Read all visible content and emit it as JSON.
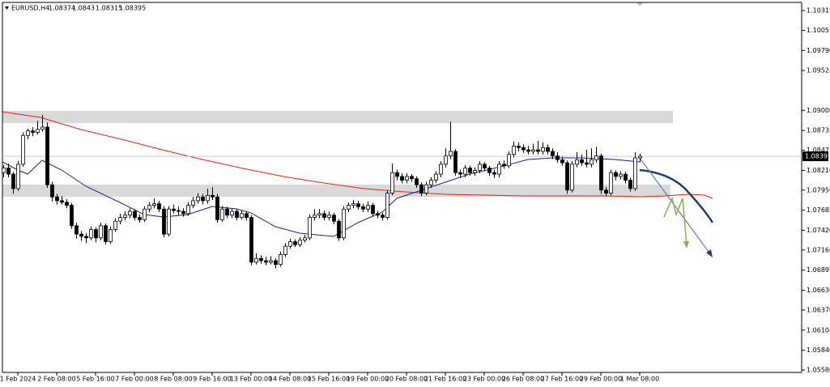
{
  "chart_data": {
    "type": "candlestick",
    "title": "EURUSD,H4",
    "ylim": [
      1.05548,
      1.10454
    ],
    "yticks": [
      1.10315,
      1.10055,
      {
        "value": 1.0979,
        "label": "1.09790"
      },
      1.09525,
      {
        "value": 1.09,
        "label": "1.09000"
      },
      1.08735,
      1.08475,
      {
        "value": 1.0821,
        "label": "1.08210"
      },
      {
        "value": 1.0795,
        "label": "1.07950"
      },
      1.07685,
      {
        "value": 1.0742,
        "label": "1.07420"
      },
      {
        "value": 1.0716,
        "label": "1.07160"
      },
      1.06895,
      {
        "value": 1.0663,
        "label": "1.06630"
      },
      {
        "value": 1.0637,
        "label": "1.06370"
      },
      1.06105,
      {
        "value": 1.0584,
        "label": "1.05840"
      },
      {
        "value": 1.0558,
        "label": "1.05580"
      }
    ],
    "categories": [
      null,
      null,
      null,
      "1 Feb 2024",
      null,
      null,
      null,
      null,
      null,
      null,
      null,
      "2 Feb 08:00",
      null,
      null,
      null,
      null,
      null,
      null,
      null,
      "5 Feb 16:00",
      null,
      null,
      null,
      null,
      null,
      null,
      null,
      "7 Feb 00:00",
      null,
      null,
      null,
      null,
      null,
      null,
      null,
      "8 Feb 08:00",
      null,
      null,
      null,
      null,
      null,
      null,
      null,
      "9 Feb 16:00",
      null,
      null,
      null,
      null,
      null,
      null,
      null,
      "13 Feb 00:00",
      null,
      null,
      null,
      null,
      null,
      null,
      null,
      "14 Feb 08:00",
      null,
      null,
      null,
      null,
      null,
      null,
      null,
      "15 Feb 16:00",
      null,
      null,
      null,
      null,
      null,
      null,
      null,
      "19 Feb 00:00",
      null,
      null,
      null,
      null,
      null,
      null,
      null,
      "20 Feb 08:00",
      null,
      null,
      null,
      null,
      null,
      null,
      null,
      "21 Feb 16:00",
      null,
      null,
      null,
      null,
      null,
      null,
      null,
      "23 Feb 00:00",
      null,
      null,
      null,
      null,
      null,
      null,
      null,
      "26 Feb 08:00",
      null,
      null,
      null,
      null,
      null,
      null,
      null,
      "27 Feb 16:00",
      null,
      null,
      null,
      null,
      null,
      null,
      null,
      "29 Feb 00:00",
      null,
      null,
      null,
      null,
      null,
      null,
      null,
      "1 Mar 08:00"
    ],
    "ohlc": [
      [
        1.0818,
        1.0828,
        1.0812,
        1.0824
      ],
      [
        1.0824,
        1.083,
        1.0812,
        1.0816
      ],
      [
        1.0816,
        1.0819,
        1.079,
        1.0797
      ],
      [
        1.0797,
        1.0833,
        1.0794,
        1.0829
      ],
      [
        1.0829,
        1.0871,
        1.0826,
        1.0867
      ],
      [
        1.0867,
        1.0876,
        1.0862,
        1.0873
      ],
      [
        1.0873,
        1.0878,
        1.0866,
        1.0871
      ],
      [
        1.0871,
        1.0886,
        1.0868,
        1.0875
      ],
      [
        1.0875,
        1.0894,
        1.0872,
        1.0878
      ],
      [
        1.0878,
        1.0884,
        1.0798,
        1.0802
      ],
      [
        1.0802,
        1.0806,
        1.078,
        1.0786
      ],
      [
        1.0786,
        1.079,
        1.0776,
        1.0781
      ],
      [
        1.0781,
        1.0787,
        1.0776,
        1.0779
      ],
      [
        1.0779,
        1.0783,
        1.0771,
        1.0775
      ],
      [
        1.0775,
        1.0778,
        1.0744,
        1.0748
      ],
      [
        1.0748,
        1.0752,
        1.0731,
        1.0737
      ],
      [
        1.0737,
        1.0741,
        1.0728,
        1.0734
      ],
      [
        1.0734,
        1.0738,
        1.0725,
        1.0732
      ],
      [
        1.0732,
        1.0747,
        1.0729,
        1.0743
      ],
      [
        1.0743,
        1.0746,
        1.0726,
        1.0732
      ],
      [
        1.0732,
        1.0752,
        1.0729,
        1.0748
      ],
      [
        1.0748,
        1.0751,
        1.0723,
        1.0727
      ],
      [
        1.0727,
        1.0747,
        1.0724,
        1.0743
      ],
      [
        1.0743,
        1.0758,
        1.074,
        1.0754
      ],
      [
        1.0754,
        1.0764,
        1.075,
        1.0759
      ],
      [
        1.0759,
        1.0767,
        1.0755,
        1.0762
      ],
      [
        1.0762,
        1.0771,
        1.0758,
        1.0767
      ],
      [
        1.0767,
        1.077,
        1.0755,
        1.0759
      ],
      [
        1.0759,
        1.0763,
        1.0752,
        1.0756
      ],
      [
        1.0756,
        1.0774,
        1.0753,
        1.077
      ],
      [
        1.077,
        1.0779,
        1.0766,
        1.0775
      ],
      [
        1.0775,
        1.0784,
        1.0771,
        1.0777
      ],
      [
        1.0777,
        1.0781,
        1.0766,
        1.077
      ],
      [
        1.077,
        1.0774,
        1.0733,
        1.0737
      ],
      [
        1.0737,
        1.0774,
        1.0734,
        1.077
      ],
      [
        1.077,
        1.0776,
        1.0764,
        1.0768
      ],
      [
        1.0768,
        1.0773,
        1.0762,
        1.0767
      ],
      [
        1.0767,
        1.0771,
        1.076,
        1.0764
      ],
      [
        1.0764,
        1.0779,
        1.0761,
        1.0775
      ],
      [
        1.0775,
        1.0786,
        1.0771,
        1.0781
      ],
      [
        1.0781,
        1.0791,
        1.0777,
        1.0786
      ],
      [
        1.0786,
        1.079,
        1.0776,
        1.0781
      ],
      [
        1.0781,
        1.0797,
        1.0777,
        1.0788
      ],
      [
        1.0788,
        1.0799,
        1.0782,
        1.0786
      ],
      [
        1.0786,
        1.079,
        1.0752,
        1.0756
      ],
      [
        1.0756,
        1.0774,
        1.0753,
        1.077
      ],
      [
        1.077,
        1.0773,
        1.0758,
        1.0762
      ],
      [
        1.0762,
        1.0771,
        1.0758,
        1.0767
      ],
      [
        1.0767,
        1.077,
        1.0755,
        1.0759
      ],
      [
        1.0759,
        1.0768,
        1.0756,
        1.0764
      ],
      [
        1.0764,
        1.0767,
        1.0755,
        1.0759
      ],
      [
        1.0759,
        1.0762,
        1.0696,
        1.07
      ],
      [
        1.07,
        1.0712,
        1.0697,
        1.0705
      ],
      [
        1.0705,
        1.0709,
        1.0698,
        1.0702
      ],
      [
        1.0702,
        1.0707,
        1.0696,
        1.07
      ],
      [
        1.07,
        1.0708,
        1.0697,
        1.0702
      ],
      [
        1.0702,
        1.0705,
        1.0692,
        1.0697
      ],
      [
        1.0697,
        1.0714,
        1.0694,
        1.071
      ],
      [
        1.071,
        1.0725,
        1.0707,
        1.0721
      ],
      [
        1.0721,
        1.0731,
        1.0718,
        1.0727
      ],
      [
        1.0727,
        1.073,
        1.072,
        1.0723
      ],
      [
        1.0723,
        1.0733,
        1.072,
        1.0729
      ],
      [
        1.0729,
        1.0736,
        1.0726,
        1.0732
      ],
      [
        1.0732,
        1.0763,
        1.0729,
        1.0759
      ],
      [
        1.0759,
        1.077,
        1.0755,
        1.0762
      ],
      [
        1.0762,
        1.077,
        1.0758,
        1.0764
      ],
      [
        1.0764,
        1.0768,
        1.0755,
        1.0759
      ],
      [
        1.0759,
        1.0767,
        1.0755,
        1.0762
      ],
      [
        1.0762,
        1.0765,
        1.075,
        1.0754
      ],
      [
        1.0754,
        1.0757,
        1.0728,
        1.0732
      ],
      [
        1.0732,
        1.0774,
        1.0729,
        1.077
      ],
      [
        1.077,
        1.0779,
        1.0766,
        1.0775
      ],
      [
        1.0775,
        1.0782,
        1.0771,
        1.0777
      ],
      [
        1.0777,
        1.0781,
        1.0769,
        1.0773
      ],
      [
        1.0773,
        1.0777,
        1.0766,
        1.077
      ],
      [
        1.077,
        1.078,
        1.0766,
        1.0775
      ],
      [
        1.0775,
        1.0778,
        1.076,
        1.0764
      ],
      [
        1.0764,
        1.0768,
        1.0758,
        1.0762
      ],
      [
        1.0762,
        1.0765,
        1.0755,
        1.0759
      ],
      [
        1.0759,
        1.0795,
        1.0756,
        1.0791
      ],
      [
        1.0791,
        1.083,
        1.0788,
        1.0818
      ],
      [
        1.0818,
        1.0822,
        1.0808,
        1.0813
      ],
      [
        1.0813,
        1.0817,
        1.0804,
        1.0808
      ],
      [
        1.0808,
        1.0817,
        1.0804,
        1.0813
      ],
      [
        1.0813,
        1.0816,
        1.0806,
        1.081
      ],
      [
        1.081,
        1.0813,
        1.0798,
        1.0802
      ],
      [
        1.0802,
        1.0805,
        1.0787,
        1.0791
      ],
      [
        1.0791,
        1.0806,
        1.0788,
        1.0802
      ],
      [
        1.0802,
        1.0812,
        1.0798,
        1.0808
      ],
      [
        1.0808,
        1.082,
        1.0804,
        1.0816
      ],
      [
        1.0816,
        1.0833,
        1.0812,
        1.0829
      ],
      [
        1.0829,
        1.085,
        1.0825,
        1.084
      ],
      [
        1.084,
        1.0885,
        1.0836,
        1.0846
      ],
      [
        1.0846,
        1.0849,
        1.0814,
        1.0818
      ],
      [
        1.0818,
        1.0822,
        1.0811,
        1.0816
      ],
      [
        1.0816,
        1.0828,
        1.0812,
        1.0824
      ],
      [
        1.0824,
        1.0827,
        1.0814,
        1.0818
      ],
      [
        1.0818,
        1.0825,
        1.0814,
        1.0821
      ],
      [
        1.0821,
        1.0833,
        1.0817,
        1.0829
      ],
      [
        1.0829,
        1.0832,
        1.082,
        1.0824
      ],
      [
        1.0824,
        1.0827,
        1.0814,
        1.0818
      ],
      [
        1.0818,
        1.0822,
        1.0811,
        1.0816
      ],
      [
        1.0816,
        1.0833,
        1.0812,
        1.0829
      ],
      [
        1.0829,
        1.0834,
        1.0823,
        1.0827
      ],
      [
        1.0827,
        1.0846,
        1.0824,
        1.0842
      ],
      [
        1.0842,
        1.0859,
        1.0838,
        1.0853
      ],
      [
        1.0853,
        1.0858,
        1.0846,
        1.0851
      ],
      [
        1.0851,
        1.0855,
        1.0844,
        1.0848
      ],
      [
        1.0848,
        1.0853,
        1.0842,
        1.0846
      ],
      [
        1.0846,
        1.0856,
        1.0842,
        1.0848
      ],
      [
        1.0848,
        1.086,
        1.0842,
        1.0846
      ],
      [
        1.0846,
        1.0858,
        1.0842,
        1.0851
      ],
      [
        1.0851,
        1.0855,
        1.0842,
        1.0846
      ],
      [
        1.0846,
        1.085,
        1.0836,
        1.084
      ],
      [
        1.084,
        1.0845,
        1.0831,
        1.0835
      ],
      [
        1.0835,
        1.0839,
        1.0827,
        1.0831
      ],
      [
        1.0831,
        1.0834,
        1.079,
        1.0795
      ],
      [
        1.0795,
        1.0833,
        1.0792,
        1.0829
      ],
      [
        1.0829,
        1.0845,
        1.0825,
        1.0835
      ],
      [
        1.0835,
        1.0842,
        1.0827,
        1.0831
      ],
      [
        1.0831,
        1.0848,
        1.0825,
        1.0829
      ],
      [
        1.0829,
        1.085,
        1.0825,
        1.0835
      ],
      [
        1.0835,
        1.0852,
        1.0831,
        1.084
      ],
      [
        1.084,
        1.0843,
        1.079,
        1.0795
      ],
      [
        1.0795,
        1.0799,
        1.0787,
        1.0791
      ],
      [
        1.0791,
        1.0822,
        1.0788,
        1.0818
      ],
      [
        1.0818,
        1.0821,
        1.0808,
        1.0813
      ],
      [
        1.0813,
        1.082,
        1.0809,
        1.0816
      ],
      [
        1.0816,
        1.0819,
        1.0804,
        1.0808
      ],
      [
        1.0808,
        1.0811,
        1.0793,
        1.0797
      ],
      [
        1.0797,
        1.0845,
        1.0794,
        1.08374
      ],
      [
        1.08374,
        1.0843,
        1.08315,
        1.08395
      ]
    ]
  }
}
